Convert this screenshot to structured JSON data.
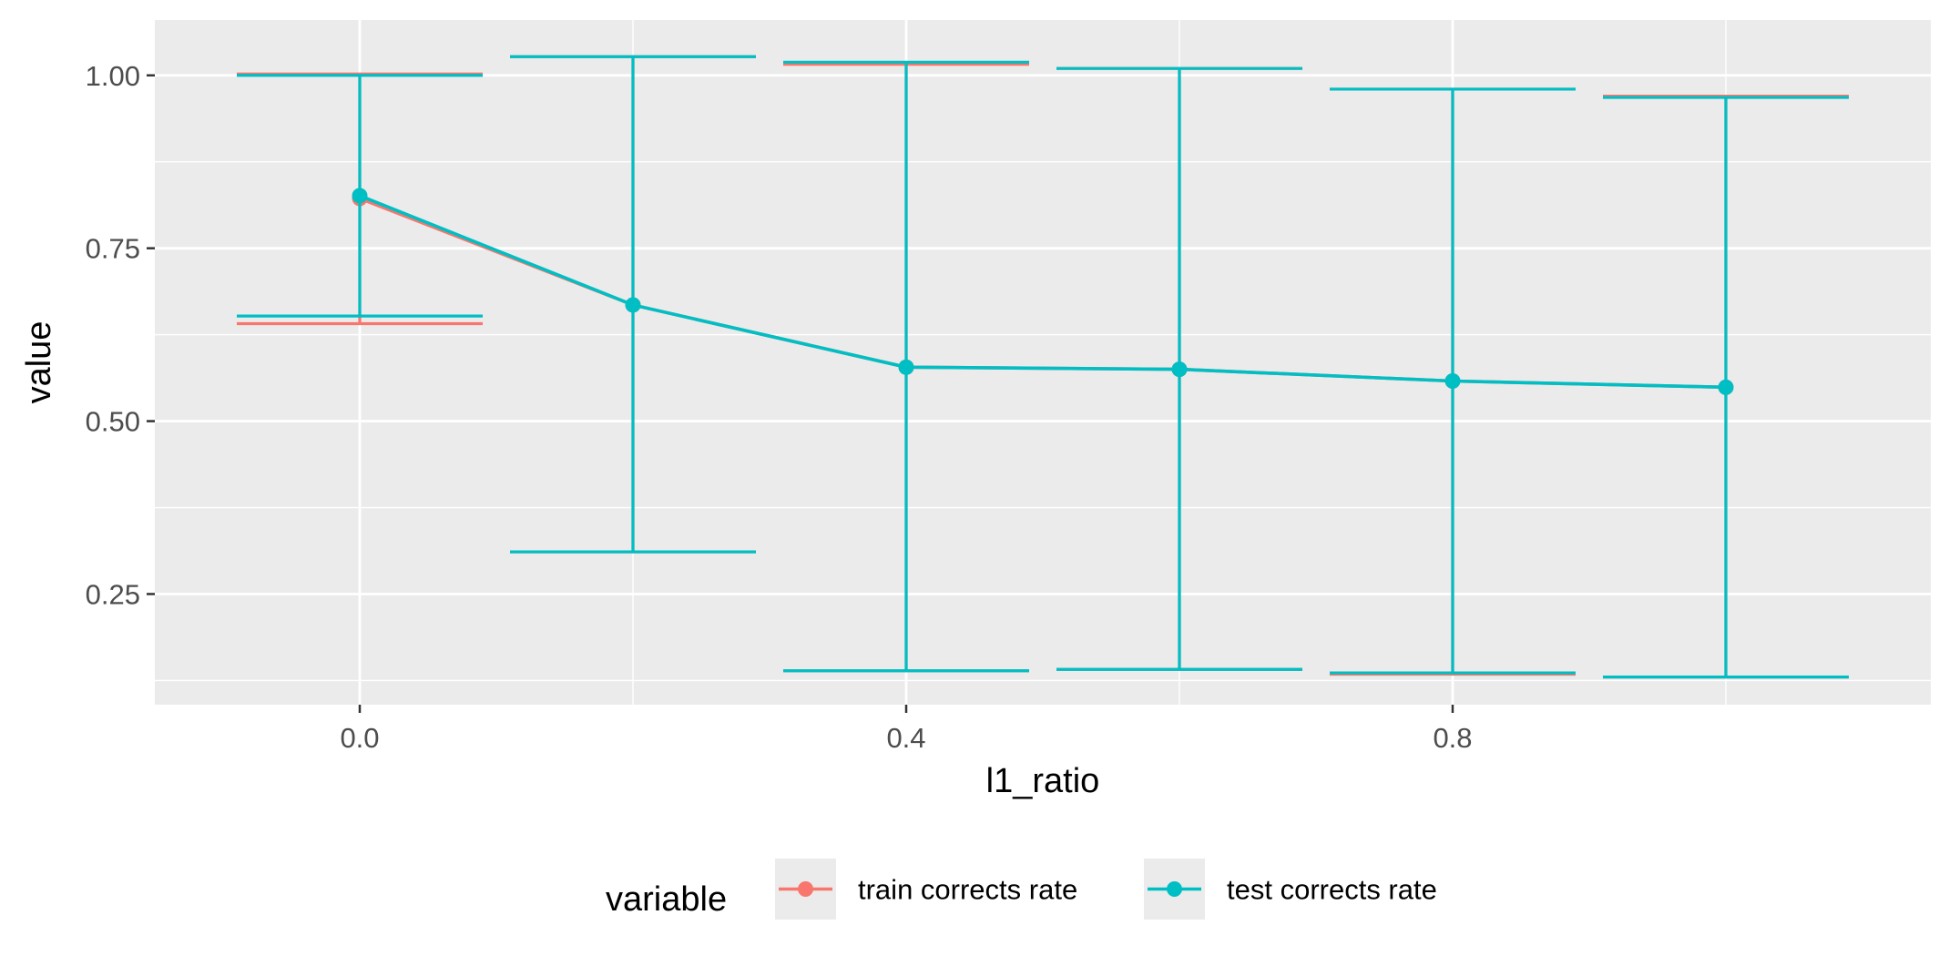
{
  "chart_data": {
    "type": "line",
    "x": [
      0.0,
      0.2,
      0.4,
      0.6,
      0.8,
      1.0
    ],
    "xlabel": "l1_ratio",
    "ylabel": "value",
    "xlim": [
      -0.15,
      1.15
    ],
    "ylim": [
      0.09,
      1.08
    ],
    "x_ticks": [
      0.0,
      0.4,
      0.8
    ],
    "x_tick_labels": [
      "0.0",
      "0.4",
      "0.8"
    ],
    "x_minor_ticks": [
      0.2,
      0.6,
      1.0
    ],
    "y_ticks": [
      0.25,
      0.5,
      0.75,
      1.0
    ],
    "y_tick_labels": [
      "0.25",
      "0.50",
      "0.75",
      "1.00"
    ],
    "y_minor_ticks": [
      0.125,
      0.375,
      0.625,
      0.875
    ],
    "grid": true,
    "legend_position": "bottom",
    "legend_title": "variable",
    "series": [
      {
        "name": "train corrects rate",
        "color": "#F8766D",
        "values": [
          0.822,
          0.668,
          0.578,
          0.575,
          0.558,
          0.549
        ],
        "error_lower": [
          0.641,
          0.311,
          0.139,
          0.141,
          0.134,
          0.13
        ],
        "error_upper": [
          1.002,
          1.027,
          1.016,
          1.01,
          0.98,
          0.97
        ]
      },
      {
        "name": "test corrects rate",
        "color": "#00BFC4",
        "values": [
          0.826,
          0.668,
          0.578,
          0.575,
          0.558,
          0.549
        ],
        "error_lower": [
          0.652,
          0.311,
          0.139,
          0.141,
          0.136,
          0.13
        ],
        "error_upper": [
          1.0,
          1.027,
          1.019,
          1.01,
          0.98,
          0.968
        ]
      }
    ]
  },
  "colors": {
    "panel_background": "#EBEBEB",
    "grid": "#FFFFFF",
    "axis_text": "#4D4D4D",
    "title_text": "#000000"
  }
}
